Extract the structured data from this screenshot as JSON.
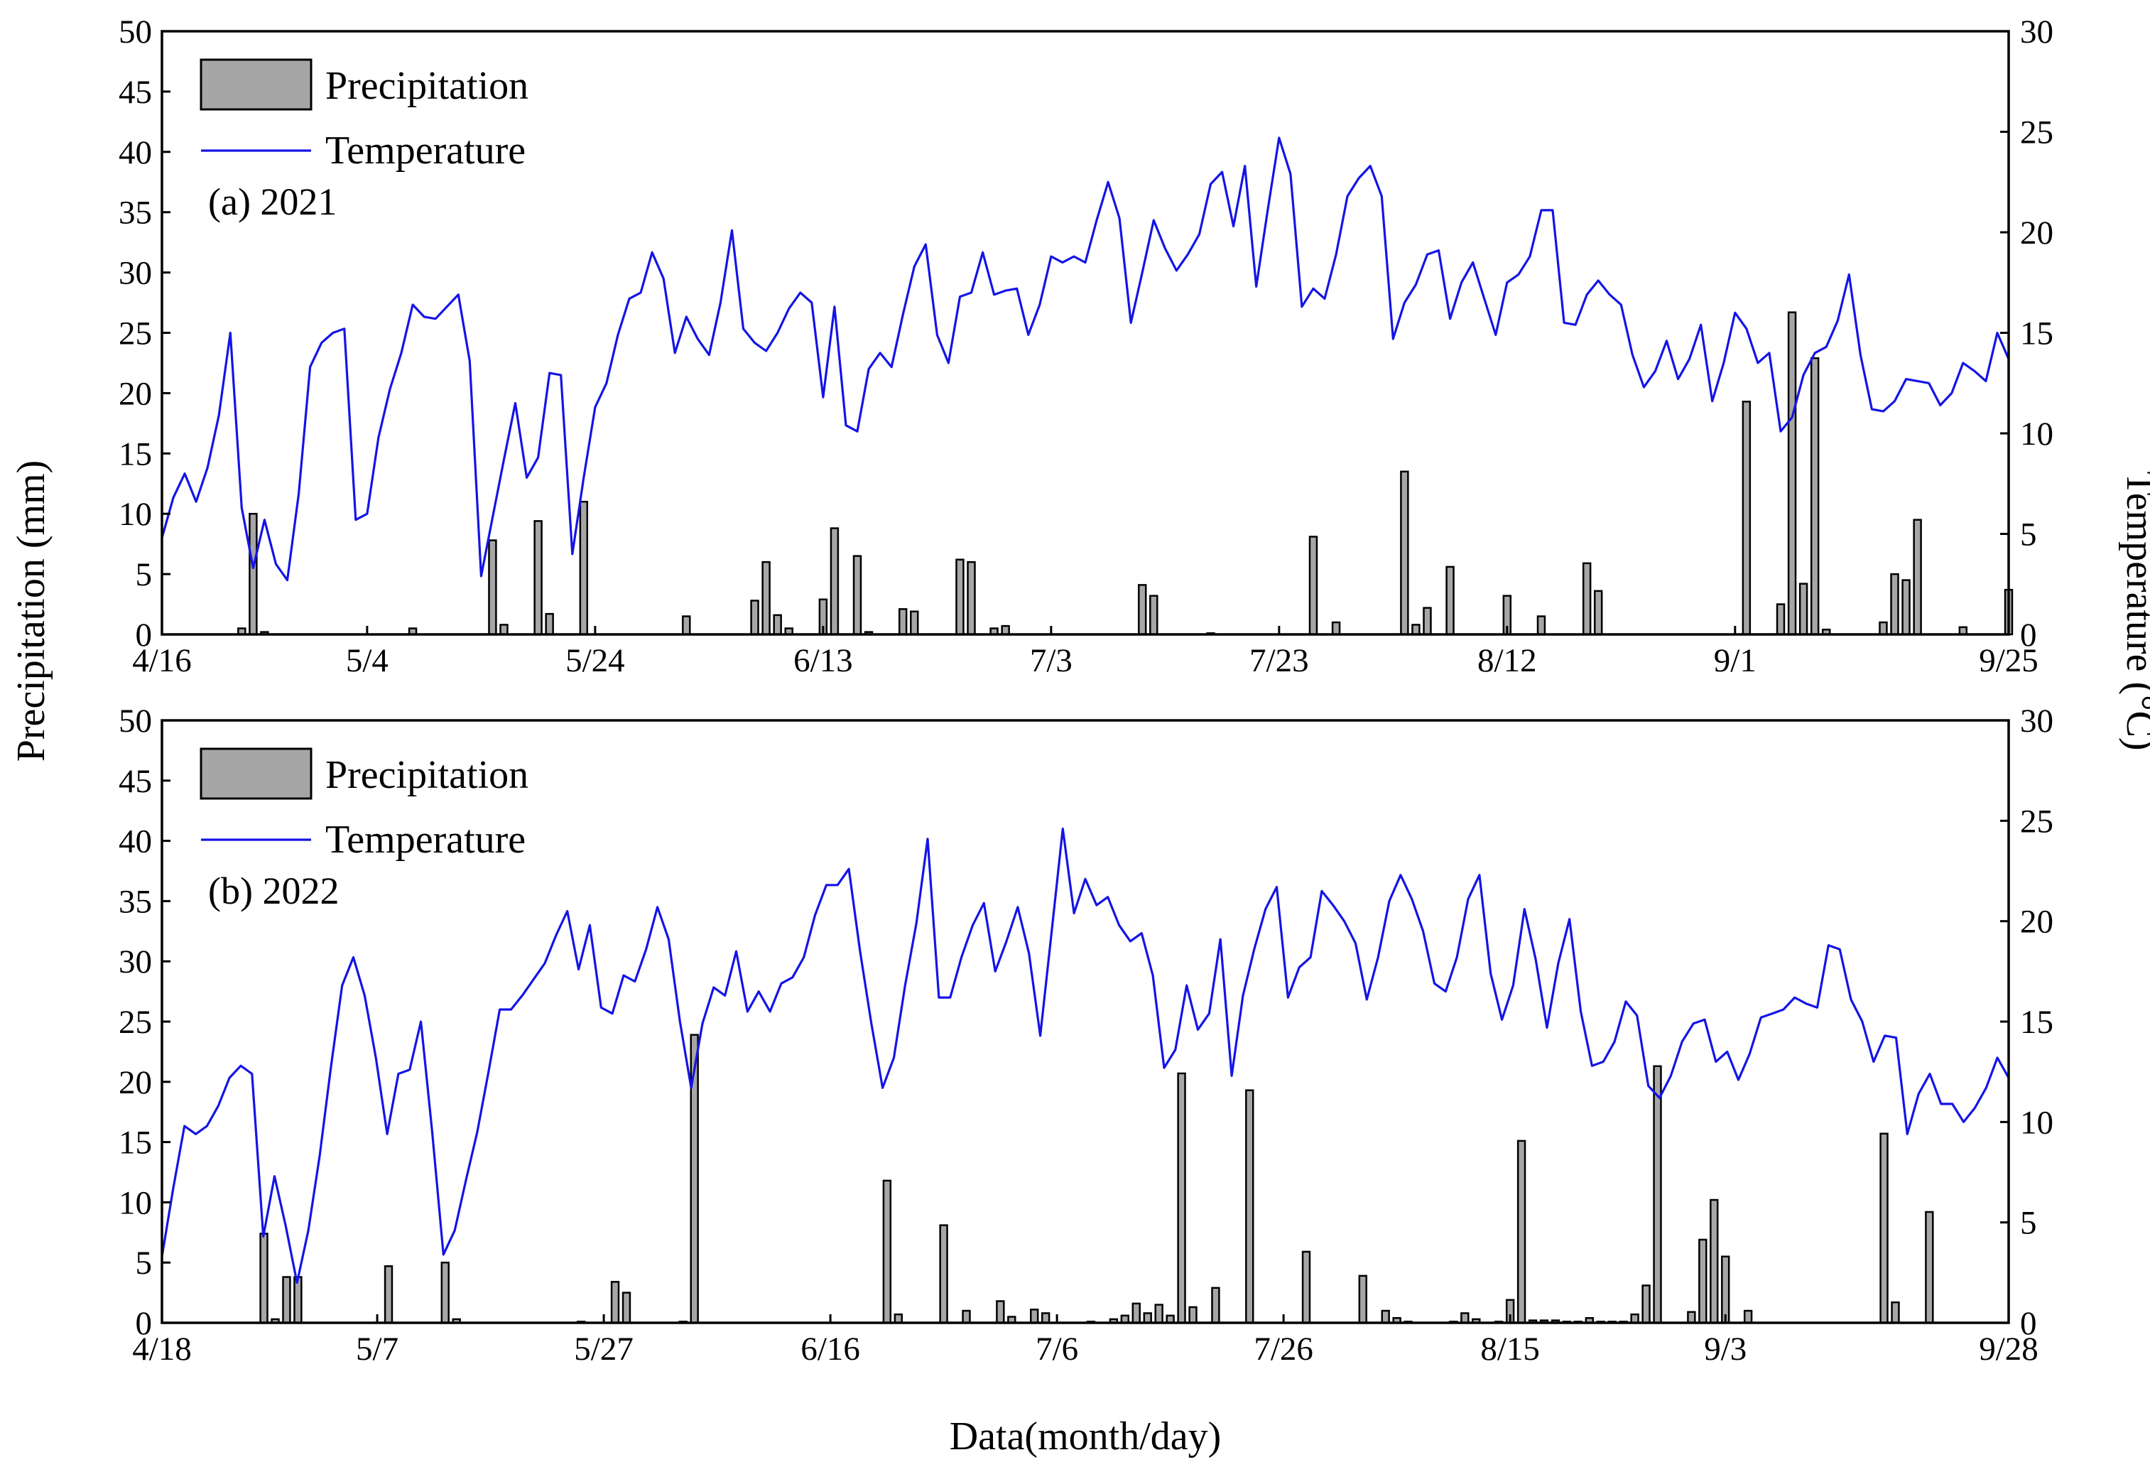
{
  "chart_data": [
    {
      "type": "bar",
      "title": "(a) 2021",
      "ylabel": "Precipitation (mm)",
      "y2label": "Temperature (°C)",
      "xlabel": "",
      "ylim": [
        0,
        50
      ],
      "y2lim": [
        0,
        30
      ],
      "yticks": [
        "0",
        "5",
        "10",
        "15",
        "20",
        "25",
        "30",
        "35",
        "40",
        "45",
        "50"
      ],
      "y2ticks": [
        "0",
        "5",
        "10",
        "15",
        "20",
        "25",
        "30"
      ],
      "x_range_days": 162,
      "xticks": [
        {
          "day": 0,
          "label": "4/16"
        },
        {
          "day": 18,
          "label": "5/4"
        },
        {
          "day": 38,
          "label": "5/24"
        },
        {
          "day": 58,
          "label": "6/13"
        },
        {
          "day": 78,
          "label": "7/3"
        },
        {
          "day": 98,
          "label": "7/23"
        },
        {
          "day": 118,
          "label": "8/12"
        },
        {
          "day": 138,
          "label": "9/1"
        },
        {
          "day": 162,
          "label": "9/25"
        }
      ],
      "legend": {
        "precip": "Precipitation",
        "temp": "Temperature",
        "position": "top-left"
      },
      "colors": {
        "temp": "#1414e6",
        "bar_fill": "#a6a6a6",
        "bar_edge": "#000000"
      },
      "precipitation": [
        [
          7,
          0.5
        ],
        [
          8,
          10.0
        ],
        [
          9,
          0.2
        ],
        [
          22,
          0.5
        ],
        [
          29,
          7.8
        ],
        [
          30,
          0.8
        ],
        [
          33,
          9.4
        ],
        [
          34,
          1.7
        ],
        [
          37,
          11.0
        ],
        [
          46,
          1.5
        ],
        [
          52,
          2.8
        ],
        [
          53,
          6.0
        ],
        [
          54,
          1.6
        ],
        [
          55,
          0.5
        ],
        [
          58,
          2.9
        ],
        [
          59,
          8.8
        ],
        [
          61,
          6.5
        ],
        [
          62,
          0.2
        ],
        [
          65,
          2.1
        ],
        [
          66,
          1.9
        ],
        [
          70,
          6.2
        ],
        [
          71,
          6.0
        ],
        [
          73,
          0.5
        ],
        [
          74,
          0.7
        ],
        [
          86,
          4.1
        ],
        [
          87,
          3.2
        ],
        [
          92,
          0.1
        ],
        [
          101,
          8.1
        ],
        [
          103,
          1.0
        ],
        [
          109,
          13.5
        ],
        [
          110,
          0.8
        ],
        [
          111,
          2.2
        ],
        [
          113,
          5.6
        ],
        [
          118,
          3.2
        ],
        [
          121,
          1.5
        ],
        [
          125,
          5.9
        ],
        [
          126,
          3.6
        ],
        [
          139,
          19.3
        ],
        [
          142,
          2.5
        ],
        [
          143,
          26.7
        ],
        [
          144,
          4.2
        ],
        [
          145,
          22.9
        ],
        [
          146,
          0.4
        ],
        [
          151,
          1.0
        ],
        [
          152,
          5.0
        ],
        [
          153,
          4.5
        ],
        [
          154,
          9.5
        ],
        [
          158,
          0.6
        ],
        [
          162,
          3.7
        ]
      ],
      "temperature": [
        4.8,
        6.8,
        8.0,
        6.6,
        8.3,
        10.9,
        15.0,
        6.3,
        3.3,
        5.7,
        3.5,
        2.7,
        7.0,
        13.3,
        14.5,
        15.0,
        15.2,
        5.7,
        6.0,
        9.8,
        12.2,
        14.0,
        16.4,
        15.8,
        15.7,
        16.3,
        16.9,
        13.6,
        2.9,
        5.8,
        8.7,
        11.5,
        7.8,
        8.8,
        13.0,
        12.9,
        4.0,
        7.8,
        11.3,
        12.5,
        14.9,
        16.7,
        17.0,
        19.0,
        17.7,
        14.0,
        15.8,
        14.7,
        13.9,
        16.5,
        20.1,
        15.2,
        14.5,
        14.1,
        15.0,
        16.2,
        17.0,
        16.5,
        11.8,
        16.3,
        10.4,
        10.1,
        13.2,
        14.0,
        13.3,
        15.9,
        18.3,
        19.4,
        14.9,
        13.5,
        16.8,
        17.0,
        19.0,
        16.9,
        17.1,
        17.2,
        14.9,
        16.4,
        18.8,
        18.5,
        18.8,
        18.5,
        20.6,
        22.5,
        20.7,
        15.5,
        18.0,
        20.6,
        19.2,
        18.1,
        18.9,
        19.9,
        22.4,
        23.0,
        20.3,
        23.3,
        17.3,
        21.1,
        24.7,
        22.9,
        16.3,
        17.2,
        16.7,
        18.9,
        21.8,
        22.7,
        23.3,
        21.8,
        14.7,
        16.5,
        17.4,
        18.9,
        19.1,
        15.7,
        17.5,
        18.5,
        16.7,
        14.9,
        17.5,
        17.9,
        18.8,
        21.1,
        21.1,
        15.5,
        15.4,
        16.9,
        17.6,
        16.9,
        16.4,
        13.9,
        12.3,
        13.1,
        14.6,
        12.7,
        13.7,
        15.4,
        11.6,
        13.5,
        16.0,
        15.2,
        13.5,
        14.0,
        10.1,
        10.8,
        12.9,
        14.0,
        14.3,
        15.6,
        17.9,
        13.9,
        11.2,
        11.1,
        11.6,
        12.7,
        12.6,
        12.5,
        11.4,
        12.0,
        13.5,
        13.1,
        12.6,
        15.0,
        13.7
      ]
    },
    {
      "type": "bar",
      "title": "(b) 2022",
      "ylabel": "Precipitation (mm)",
      "y2label": "Temperature (°C)",
      "xlabel": "Data(month/day)",
      "ylim": [
        0,
        50
      ],
      "y2lim": [
        0,
        30
      ],
      "yticks": [
        "0",
        "5",
        "10",
        "15",
        "20",
        "25",
        "30",
        "35",
        "40",
        "45",
        "50"
      ],
      "y2ticks": [
        "0",
        "5",
        "10",
        "15",
        "20",
        "25",
        "30"
      ],
      "x_range_days": 163,
      "xticks": [
        {
          "day": 0,
          "label": "4/18"
        },
        {
          "day": 19,
          "label": "5/7"
        },
        {
          "day": 39,
          "label": "5/27"
        },
        {
          "day": 59,
          "label": "6/16"
        },
        {
          "day": 79,
          "label": "7/6"
        },
        {
          "day": 99,
          "label": "7/26"
        },
        {
          "day": 119,
          "label": "8/15"
        },
        {
          "day": 138,
          "label": "9/3"
        },
        {
          "day": 163,
          "label": "9/28"
        }
      ],
      "legend": {
        "precip": "Precipitation",
        "temp": "Temperature",
        "position": "top-left"
      },
      "colors": {
        "temp": "#1414e6",
        "bar_fill": "#a6a6a6",
        "bar_edge": "#000000"
      },
      "precipitation": [
        [
          9,
          7.4
        ],
        [
          10,
          0.3
        ],
        [
          11,
          3.8
        ],
        [
          12,
          3.8
        ],
        [
          20,
          4.7
        ],
        [
          25,
          5.0
        ],
        [
          26,
          0.3
        ],
        [
          37,
          0.1
        ],
        [
          40,
          3.4
        ],
        [
          41,
          2.5
        ],
        [
          46,
          0.1
        ],
        [
          47,
          23.9
        ],
        [
          64,
          11.8
        ],
        [
          65,
          0.7
        ],
        [
          69,
          8.1
        ],
        [
          71,
          1.0
        ],
        [
          74,
          1.8
        ],
        [
          75,
          0.5
        ],
        [
          77,
          1.1
        ],
        [
          78,
          0.8
        ],
        [
          82,
          0.1
        ],
        [
          84,
          0.3
        ],
        [
          85,
          0.6
        ],
        [
          86,
          1.6
        ],
        [
          87,
          0.8
        ],
        [
          88,
          1.5
        ],
        [
          89,
          0.6
        ],
        [
          90,
          20.7
        ],
        [
          91,
          1.3
        ],
        [
          93,
          2.9
        ],
        [
          96,
          19.3
        ],
        [
          101,
          5.9
        ],
        [
          106,
          3.9
        ],
        [
          108,
          1.0
        ],
        [
          109,
          0.4
        ],
        [
          110,
          0.1
        ],
        [
          114,
          0.1
        ],
        [
          115,
          0.8
        ],
        [
          116,
          0.3
        ],
        [
          118,
          0.1
        ],
        [
          119,
          1.9
        ],
        [
          120,
          15.1
        ],
        [
          121,
          0.2
        ],
        [
          122,
          0.2
        ],
        [
          123,
          0.2
        ],
        [
          124,
          0.1
        ],
        [
          125,
          0.1
        ],
        [
          126,
          0.4
        ],
        [
          127,
          0.1
        ],
        [
          128,
          0.1
        ],
        [
          129,
          0.1
        ],
        [
          130,
          0.7
        ],
        [
          131,
          3.1
        ],
        [
          132,
          21.3
        ],
        [
          135,
          0.9
        ],
        [
          136,
          6.9
        ],
        [
          137,
          10.2
        ],
        [
          138,
          5.5
        ],
        [
          140,
          1.0
        ],
        [
          152,
          15.7
        ],
        [
          153,
          1.7
        ],
        [
          156,
          9.2
        ]
      ],
      "temperature": [
        3.3,
        6.7,
        9.8,
        9.4,
        9.8,
        10.8,
        12.2,
        12.8,
        12.4,
        4.3,
        7.3,
        4.8,
        2.0,
        4.6,
        8.3,
        12.7,
        16.8,
        18.2,
        16.3,
        13.2,
        9.4,
        12.4,
        12.6,
        15.0,
        9.5,
        3.4,
        4.6,
        7.1,
        9.5,
        12.5,
        15.6,
        15.6,
        16.3,
        17.1,
        17.9,
        19.3,
        20.5,
        17.6,
        19.8,
        15.7,
        15.4,
        17.3,
        17.0,
        18.6,
        20.7,
        19.1,
        15.0,
        11.7,
        14.9,
        16.7,
        16.3,
        18.5,
        15.5,
        16.5,
        15.5,
        16.9,
        17.2,
        18.2,
        20.3,
        21.8,
        21.8,
        22.6,
        18.5,
        14.9,
        11.7,
        13.2,
        16.8,
        19.9,
        24.1,
        16.2,
        16.2,
        18.2,
        19.8,
        20.9,
        17.5,
        19.0,
        20.7,
        18.4,
        14.3,
        19.4,
        24.6,
        20.4,
        22.1,
        20.8,
        21.2,
        19.8,
        19.0,
        19.4,
        17.3,
        12.7,
        13.6,
        16.8,
        14.6,
        15.4,
        19.1,
        12.3,
        16.3,
        18.6,
        20.6,
        21.7,
        16.2,
        17.7,
        18.2,
        21.5,
        20.8,
        20.0,
        18.9,
        16.1,
        18.2,
        21.0,
        22.3,
        21.1,
        19.5,
        16.9,
        16.5,
        18.2,
        21.1,
        22.3,
        17.4,
        15.1,
        16.8,
        20.6,
        18.1,
        14.7,
        17.9,
        20.1,
        15.5,
        12.8,
        13.0,
        14.0,
        16.0,
        15.3,
        11.8,
        11.2,
        12.3,
        14.0,
        14.9,
        15.1,
        13.0,
        13.5,
        12.1,
        13.4,
        15.2,
        15.4,
        15.6,
        16.2,
        15.9,
        15.7,
        18.8,
        18.6,
        16.1,
        15.0,
        13.0,
        14.3,
        14.2,
        9.4,
        11.4,
        12.4,
        10.9,
        10.9,
        10.0,
        10.7,
        11.7,
        13.2,
        12.2
      ]
    }
  ]
}
